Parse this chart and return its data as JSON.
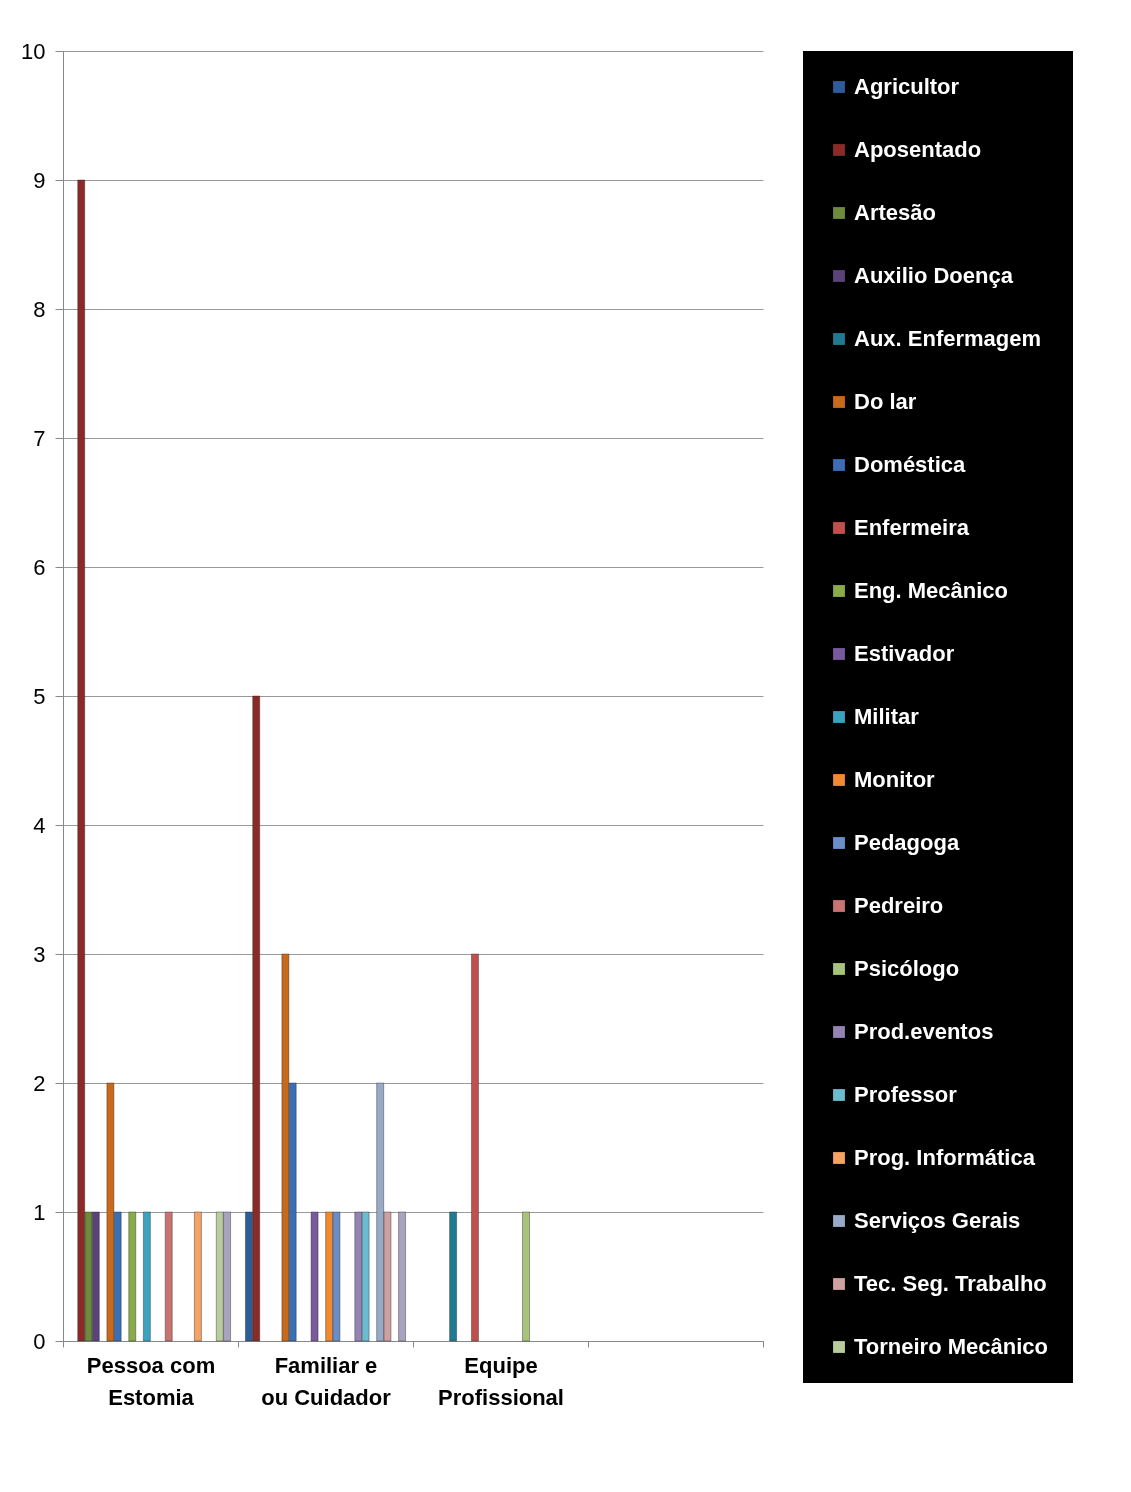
{
  "chart_data": {
    "type": "bar",
    "categories": [
      "Pessoa com Estomia",
      "Familiar e ou Cuidador",
      "Equipe Profissional",
      null
    ],
    "ylim": [
      0,
      10
    ],
    "yticks": [
      0,
      1,
      2,
      3,
      4,
      5,
      6,
      7,
      8,
      9,
      10
    ],
    "grid": "y",
    "legend": "right",
    "series": [
      {
        "name": "Agricultor",
        "color": "#2c5d98",
        "values": [
          null,
          1,
          null,
          null
        ]
      },
      {
        "name": "Aposentado",
        "color": "#8c2a27",
        "values": [
          9,
          5,
          null,
          null
        ]
      },
      {
        "name": "Artesão",
        "color": "#6e8b3d",
        "values": [
          1,
          null,
          null,
          null
        ]
      },
      {
        "name": "Auxilio Doença",
        "color": "#5b437a",
        "values": [
          1,
          null,
          null,
          null
        ]
      },
      {
        "name": "Aux. Enfermagem",
        "color": "#217a93",
        "values": [
          null,
          null,
          1,
          null
        ]
      },
      {
        "name": "Do lar",
        "color": "#c8691c",
        "values": [
          2,
          3,
          null,
          null
        ]
      },
      {
        "name": "Doméstica",
        "color": "#3a6fb5",
        "values": [
          1,
          2,
          null,
          null
        ]
      },
      {
        "name": "Enfermeira",
        "color": "#c0504d",
        "values": [
          null,
          null,
          3,
          null
        ]
      },
      {
        "name": "Eng. Mecânico",
        "color": "#8aab4a",
        "values": [
          1,
          null,
          null,
          null
        ]
      },
      {
        "name": "Estivador",
        "color": "#7a5a9e",
        "values": [
          null,
          1,
          null,
          null
        ]
      },
      {
        "name": "Militar",
        "color": "#3aa3c0",
        "values": [
          1,
          null,
          null,
          null
        ]
      },
      {
        "name": "Monitor",
        "color": "#f0892f",
        "values": [
          null,
          1,
          null,
          null
        ]
      },
      {
        "name": "Pedagoga",
        "color": "#6a8fc8",
        "values": [
          null,
          1,
          null,
          null
        ]
      },
      {
        "name": "Pedreiro",
        "color": "#c97472",
        "values": [
          1,
          null,
          null,
          null
        ]
      },
      {
        "name": "Psicólogo",
        "color": "#a8c47a",
        "values": [
          null,
          null,
          1,
          null
        ]
      },
      {
        "name": "Prod.eventos",
        "color": "#9583b4",
        "values": [
          null,
          1,
          null,
          null
        ]
      },
      {
        "name": "Professor",
        "color": "#6bbcd0",
        "values": [
          null,
          1,
          null,
          null
        ]
      },
      {
        "name": "Prog. Informática",
        "color": "#f5a263",
        "values": [
          1,
          null,
          null,
          null
        ]
      },
      {
        "name": "Serviços Gerais",
        "color": "#98aac8",
        "values": [
          null,
          2,
          null,
          null
        ]
      },
      {
        "name": "Tec. Seg. Trabalho",
        "color": "#cfa0a0",
        "values": [
          null,
          1,
          null,
          null
        ]
      },
      {
        "name": "Torneiro Mecânico",
        "color": "#b8cc9c",
        "values": [
          1,
          null,
          null,
          null
        ]
      },
      {
        "color": "#aaa3c0",
        "values": [
          1,
          1,
          null,
          null
        ]
      }
    ]
  }
}
